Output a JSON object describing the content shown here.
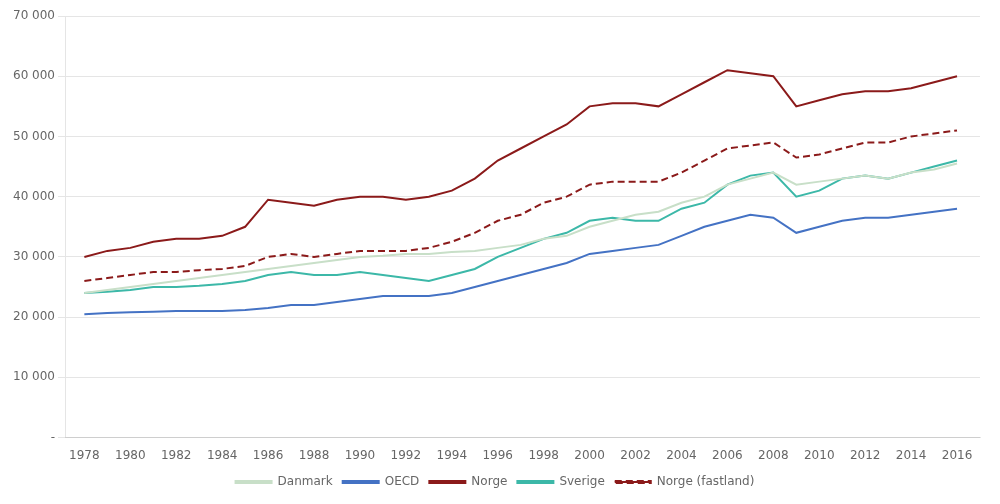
{
  "chart_data": {
    "type": "line",
    "x": [
      1978,
      1979,
      1980,
      1981,
      1982,
      1983,
      1984,
      1985,
      1986,
      1987,
      1988,
      1989,
      1990,
      1991,
      1992,
      1993,
      1994,
      1995,
      1996,
      1997,
      1998,
      1999,
      2000,
      2001,
      2002,
      2003,
      2004,
      2005,
      2006,
      2007,
      2008,
      2009,
      2010,
      2011,
      2012,
      2013,
      2014,
      2015,
      2016
    ],
    "series": [
      {
        "name": "Danmark",
        "color": "#c8dfc8",
        "line_style": "solid",
        "values": [
          24000,
          24500,
          25000,
          25500,
          26000,
          26500,
          27000,
          27500,
          28000,
          28500,
          29000,
          29500,
          30000,
          30200,
          30500,
          30500,
          30800,
          31000,
          31500,
          32000,
          33000,
          33500,
          35000,
          36000,
          37000,
          37500,
          39000,
          40000,
          42000,
          43000,
          44000,
          42000,
          42500,
          43000,
          43500,
          43000,
          44000,
          44500,
          45500
        ]
      },
      {
        "name": "OECD",
        "color": "#4472c4",
        "line_style": "solid",
        "values": [
          20500,
          20700,
          20800,
          20900,
          21000,
          21000,
          21000,
          21200,
          21500,
          22000,
          22000,
          22500,
          23000,
          23500,
          23500,
          23500,
          24000,
          25000,
          26000,
          27000,
          28000,
          29000,
          30500,
          31000,
          31500,
          32000,
          33500,
          35000,
          36000,
          37000,
          36500,
          34000,
          35000,
          36000,
          36500,
          36500,
          37000,
          37500,
          38000
        ]
      },
      {
        "name": "Norge",
        "color": "#8b1a1a",
        "line_style": "solid",
        "values": [
          30000,
          31000,
          31500,
          32500,
          33000,
          33000,
          33500,
          35000,
          39500,
          39000,
          38500,
          39500,
          40000,
          40000,
          39500,
          40000,
          41000,
          43000,
          46000,
          48000,
          50000,
          52000,
          55000,
          55500,
          55500,
          55000,
          57000,
          59000,
          61000,
          60500,
          60000,
          55000,
          56000,
          57000,
          57500,
          57500,
          58000,
          59000,
          60000
        ]
      },
      {
        "name": "Sverige",
        "color": "#3cb8a8",
        "line_style": "solid",
        "values": [
          24000,
          24200,
          24500,
          25000,
          25000,
          25200,
          25500,
          26000,
          27000,
          27500,
          27000,
          27000,
          27500,
          27000,
          26500,
          26000,
          27000,
          28000,
          30000,
          31500,
          33000,
          34000,
          36000,
          36500,
          36000,
          36000,
          38000,
          39000,
          42000,
          43500,
          44000,
          40000,
          41000,
          43000,
          43500,
          43000,
          44000,
          45000,
          46000
        ]
      },
      {
        "name": "Norge (fastland)",
        "color": "#8b1a1a",
        "line_style": "dashed",
        "values": [
          26000,
          26500,
          27000,
          27500,
          27500,
          27800,
          28000,
          28500,
          30000,
          30500,
          30000,
          30500,
          31000,
          31000,
          31000,
          31500,
          32500,
          34000,
          36000,
          37000,
          39000,
          40000,
          42000,
          42500,
          42500,
          42500,
          44000,
          46000,
          48000,
          48500,
          49000,
          46500,
          47000,
          48000,
          49000,
          49000,
          50000,
          50500,
          51000
        ]
      }
    ],
    "xlim": [
      1977.2,
      2017.0
    ],
    "xticks": [
      1978,
      1980,
      1982,
      1984,
      1986,
      1988,
      1990,
      1992,
      1994,
      1996,
      1998,
      2000,
      2002,
      2004,
      2006,
      2008,
      2010,
      2012,
      2014,
      2016
    ],
    "ylim": [
      0,
      70000
    ],
    "yticks": [
      {
        "value": 0,
        "label": "-"
      },
      {
        "value": 10000,
        "label": "10 000"
      },
      {
        "value": 20000,
        "label": "20 000"
      },
      {
        "value": 30000,
        "label": "30 000"
      },
      {
        "value": 40000,
        "label": "40 000"
      },
      {
        "value": 50000,
        "label": "50 000"
      },
      {
        "value": 60000,
        "label": "60 000"
      },
      {
        "value": 70000,
        "label": "70 000"
      }
    ],
    "grid": "y",
    "legend": "bottom"
  }
}
